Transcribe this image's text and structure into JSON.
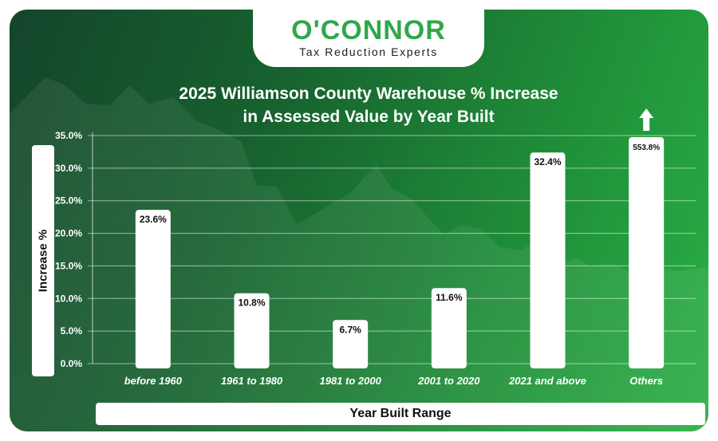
{
  "brand": {
    "name": "O'CONNOR",
    "tagline": "Tax Reduction Experts"
  },
  "colors": {
    "bar": "#ffffff",
    "grid": "#ffffff",
    "text": "#ffffff",
    "label": "#111111",
    "accent": "#2ea84a"
  },
  "chart_data": {
    "type": "bar",
    "title_line1": "2025 Williamson County Warehouse % Increase",
    "title_line2": "in Assessed Value by Year Built",
    "xlabel": "Year Built Range",
    "ylabel": "Increase %",
    "categories": [
      "before 1960",
      "1961 to 1980",
      "1981 to 2000",
      "2001 to 2020",
      "2021 and above",
      "Others"
    ],
    "values": [
      23.6,
      10.8,
      6.7,
      11.6,
      32.4,
      553.8
    ],
    "data_labels": [
      "23.6%",
      "10.8%",
      "6.7%",
      "11.6%",
      "32.4%",
      "553.8%"
    ],
    "ylim": [
      0,
      35
    ],
    "yticks": [
      0,
      5,
      10,
      15,
      20,
      25,
      30,
      35
    ],
    "ytick_labels": [
      "0.0%",
      "5.0%",
      "10.0%",
      "15.0%",
      "20.0%",
      "25.0%",
      "30.0%",
      "35.0%"
    ],
    "clipped_categories": [
      "Others"
    ],
    "grid": true
  }
}
